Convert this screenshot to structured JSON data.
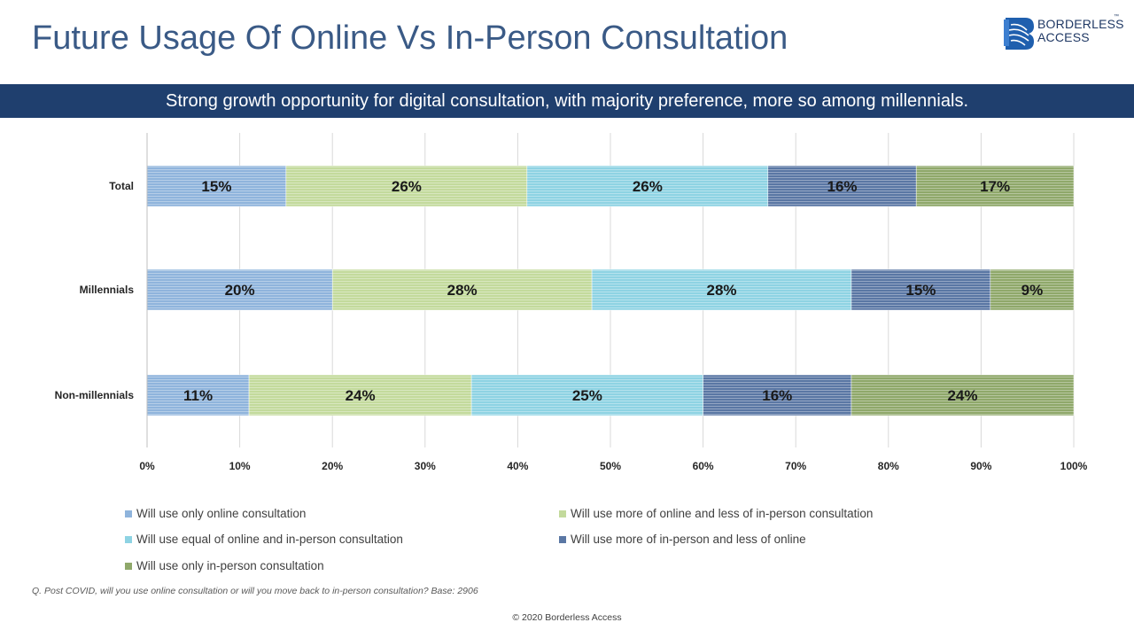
{
  "page": {
    "title": "Future Usage Of Online Vs In-Person Consultation",
    "banner": "Strong growth opportunity for digital consultation, with majority preference, more so among millennials.",
    "logo": {
      "line1": "BORDERLESS",
      "line2": "ACCESS",
      "tm": "™"
    },
    "note": "Q. Post COVID, will you use online consultation or will you move back to in-person consultation? Base: 2906",
    "copyright": "© 2020 Borderless Access"
  },
  "chart_data": {
    "type": "bar",
    "orientation": "horizontal",
    "stacked": true,
    "categories": [
      "Total",
      "Millennials",
      "Non-millennials"
    ],
    "xlim": [
      0,
      100
    ],
    "x_ticks": [
      "0%",
      "10%",
      "20%",
      "30%",
      "40%",
      "50%",
      "60%",
      "70%",
      "80%",
      "90%",
      "100%"
    ],
    "grid": true,
    "legend_position": "bottom",
    "series": [
      {
        "name": "Will use only online consultation",
        "values": [
          15,
          20,
          11
        ],
        "labels": [
          "15%",
          "20%",
          "11%"
        ],
        "color": "#8fb4dc"
      },
      {
        "name": "Will use more of online and less of in-person consultation",
        "values": [
          26,
          28,
          24
        ],
        "labels": [
          "26%",
          "28%",
          "24%"
        ],
        "color": "#c3da9c"
      },
      {
        "name": "Will use equal of online and in-person consultation",
        "values": [
          26,
          28,
          25
        ],
        "labels": [
          "26%",
          "28%",
          "25%"
        ],
        "color": "#8ed3e3"
      },
      {
        "name": "Will use more of in-person and less of online",
        "values": [
          16,
          15,
          16
        ],
        "labels": [
          "16%",
          "15%",
          "16%"
        ],
        "color": "#5a77a4"
      },
      {
        "name": "Will use only in-person consultation",
        "values": [
          17,
          9,
          24
        ],
        "labels": [
          "17%",
          "9%",
          "24%"
        ],
        "color": "#8fa86a"
      }
    ]
  }
}
